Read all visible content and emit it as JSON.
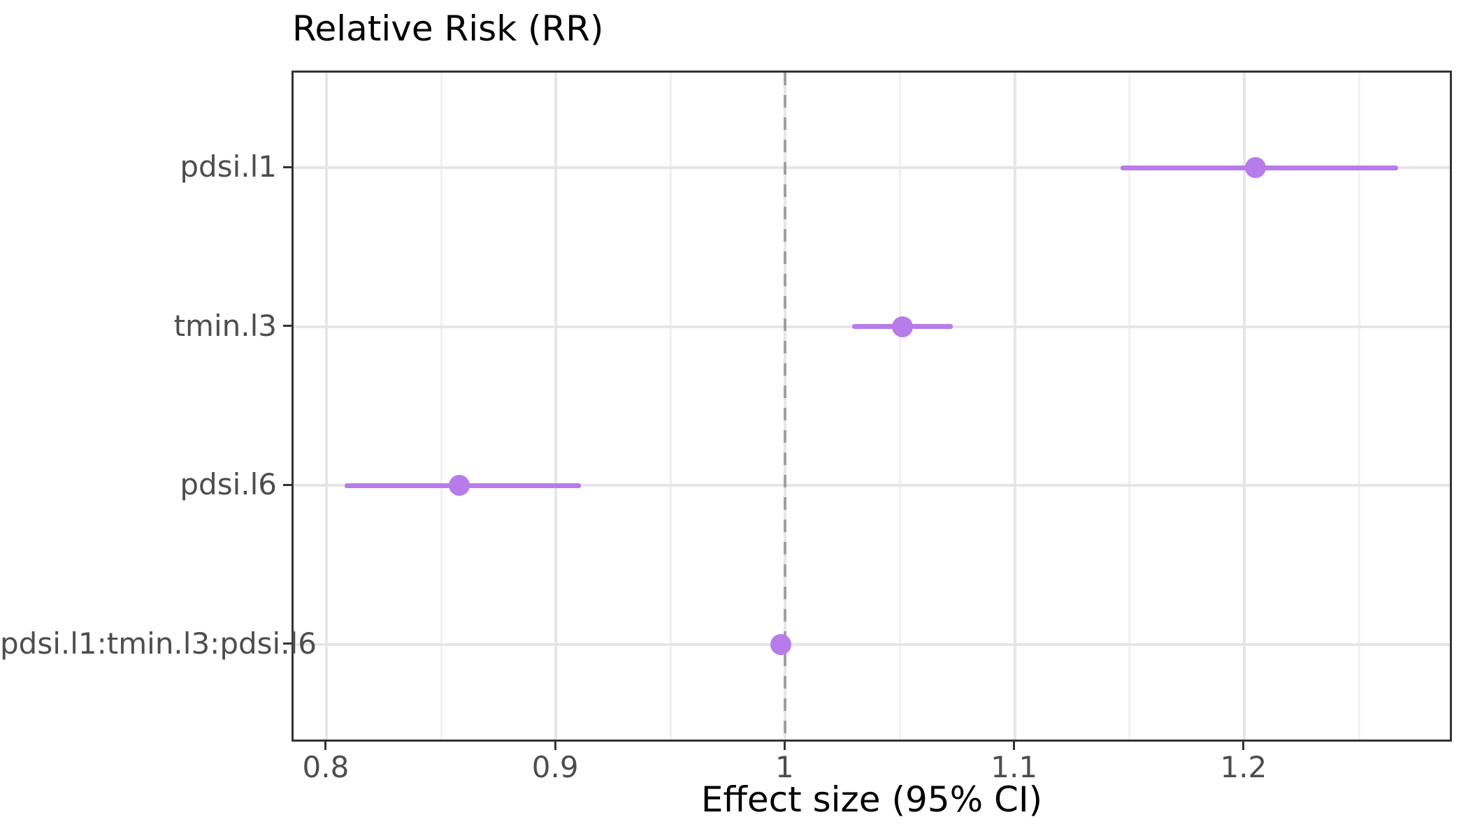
{
  "page": {
    "background": "#ffffff"
  },
  "chart_data": {
    "type": "scatter",
    "variant": "forest-plot-dot-whisker",
    "title": "Relative Risk (RR)",
    "xlabel": "Effect size (95% CI)",
    "ylabel": "",
    "legend_position": "none",
    "grid": {
      "major": true,
      "minor_vertical": true,
      "minor_horizontal": false
    },
    "x_axis": {
      "range": [
        0.7857,
        1.2896
      ],
      "ticks": [
        0.8,
        0.9,
        1.0,
        1.1,
        1.2
      ],
      "tick_labels": [
        "0.8",
        "0.9",
        "1",
        "1.1",
        "1.2"
      ],
      "minor_ticks": [
        0.85,
        0.95,
        1.05,
        1.15,
        1.25
      ]
    },
    "y_axis": {
      "categories_top_to_bottom": [
        "pdsi.l1",
        "tmin.l3",
        "pdsi.l6",
        "pdsi.l1:tmin.l3:pdsi.l6"
      ],
      "discrete_expansion": 0.6
    },
    "reference_line": {
      "x": 1.0,
      "style": "dashed",
      "color": "#a0a0a0"
    },
    "series": [
      {
        "name": "pdsi.l1",
        "estimate": 1.205,
        "ci_low": 1.146,
        "ci_high": 1.267
      },
      {
        "name": "tmin.l3",
        "estimate": 1.051,
        "ci_low": 1.029,
        "ci_high": 1.073
      },
      {
        "name": "pdsi.l6",
        "estimate": 0.858,
        "ci_low": 0.808,
        "ci_high": 0.911
      },
      {
        "name": "pdsi.l1:tmin.l3:pdsi.l6",
        "estimate": 0.998,
        "ci_low": 0.995,
        "ci_high": 1.002
      }
    ]
  },
  "colors": {
    "point": "#b77ce9",
    "ci_line": "#b77ce9",
    "grid_major": "#e6e6e6",
    "grid_minor": "#f0f0f0",
    "panel_border": "#333333",
    "tick_mark": "#333333",
    "tick_label": "#4d4d4d",
    "title": "#000000",
    "axis_title": "#000000",
    "background": "#ffffff"
  }
}
